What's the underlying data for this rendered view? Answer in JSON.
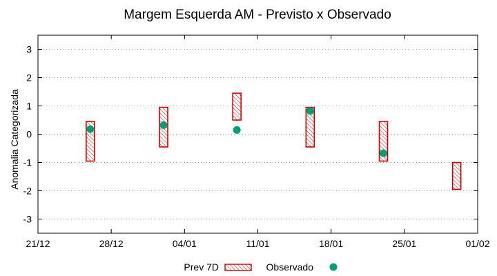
{
  "chart_data": {
    "type": "range-bar",
    "title": "Margem Esquerda AM - Previsto x Observado",
    "xlabel": "",
    "ylabel": "Anomalia Categorizada",
    "ylim": [
      -3.5,
      3.5
    ],
    "yticks": [
      -3,
      -2,
      -1,
      0,
      1,
      2,
      3
    ],
    "xlim": [
      0,
      42
    ],
    "xticks": [
      {
        "x": 0,
        "label": "21/12"
      },
      {
        "x": 7,
        "label": "28/12"
      },
      {
        "x": 14,
        "label": "04/01"
      },
      {
        "x": 21,
        "label": "11/01"
      },
      {
        "x": 28,
        "label": "18/01"
      },
      {
        "x": 35,
        "label": "25/01"
      },
      {
        "x": 42,
        "label": "01/02"
      }
    ],
    "grid": true,
    "legend_position": "bottom",
    "series": [
      {
        "name": "Prev 7D",
        "color": "#cc0000",
        "kind": "hatched-range",
        "points": [
          {
            "x": 5,
            "low": -0.95,
            "high": 0.45
          },
          {
            "x": 12,
            "low": -0.45,
            "high": 0.95
          },
          {
            "x": 19,
            "low": 0.5,
            "high": 1.45
          },
          {
            "x": 26,
            "low": -0.45,
            "high": 0.95
          },
          {
            "x": 33,
            "low": -0.95,
            "high": 0.45
          },
          {
            "x": 40,
            "low": -1.95,
            "high": -1.0
          }
        ]
      },
      {
        "name": "Observado",
        "color": "#009e73",
        "kind": "points",
        "points": [
          {
            "x": 5,
            "y": 0.18
          },
          {
            "x": 12,
            "y": 0.32
          },
          {
            "x": 19,
            "y": 0.15
          },
          {
            "x": 26,
            "y": 0.82
          },
          {
            "x": 33,
            "y": -0.67
          }
        ]
      }
    ]
  }
}
